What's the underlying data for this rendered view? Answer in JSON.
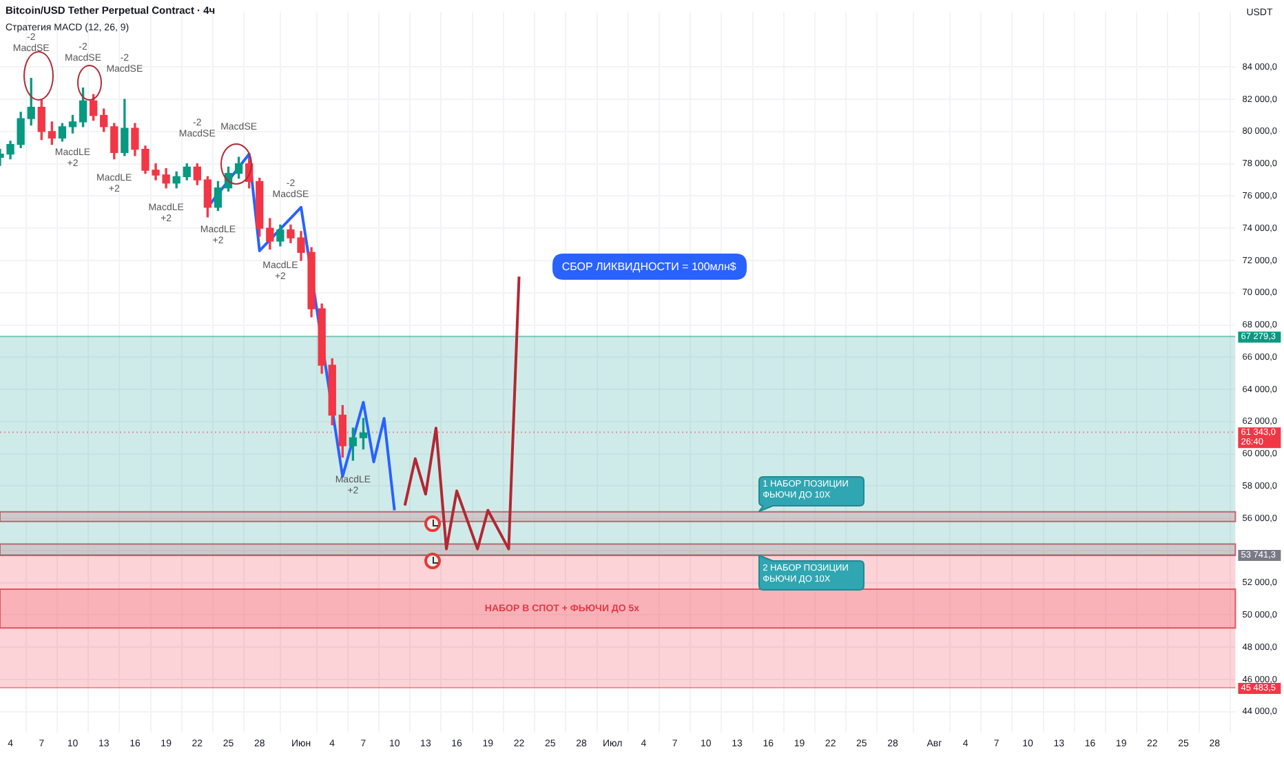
{
  "chart_data": {
    "type": "candlestick",
    "title": "Bitcoin/USD Tether Perpetual Contract · 4ч",
    "subtitle": "Стратегия MACD (12, 26, 9)",
    "ylabel": "USDT",
    "x": [
      "--05-03",
      "--05-04",
      "--05-05",
      "--05-06",
      "--05-07",
      "--05-08",
      "--05-09",
      "--05-10",
      "--05-11",
      "--05-12",
      "--05-13",
      "--05-14",
      "--05-15",
      "--05-16",
      "--05-17",
      "--05-18",
      "--05-19",
      "--05-20",
      "--05-21",
      "--05-22",
      "--05-23",
      "--05-24",
      "--05-25",
      "--05-26",
      "--05-27",
      "--05-28",
      "--05-29",
      "--05-30",
      "--05-31",
      "--06-01",
      "--06-02",
      "--06-03",
      "--06-04",
      "--06-05",
      "--06-06",
      "--06-07"
    ],
    "ohlc": [
      [
        78400,
        78900,
        77900,
        78600
      ],
      [
        78600,
        79400,
        78300,
        79200
      ],
      [
        79200,
        81200,
        79000,
        80800
      ],
      [
        80800,
        83300,
        80400,
        81500
      ],
      [
        81500,
        82000,
        79500,
        80000
      ],
      [
        80000,
        80600,
        79200,
        79600
      ],
      [
        79600,
        80500,
        79400,
        80300
      ],
      [
        80300,
        81000,
        79900,
        80600
      ],
      [
        80600,
        82700,
        80300,
        81900
      ],
      [
        81900,
        82300,
        80700,
        81000
      ],
      [
        81000,
        81400,
        80000,
        80300
      ],
      [
        80300,
        80500,
        78300,
        78700
      ],
      [
        78700,
        82000,
        78500,
        80200
      ],
      [
        80200,
        80500,
        78500,
        78900
      ],
      [
        78900,
        79100,
        77400,
        77600
      ],
      [
        77600,
        78000,
        77000,
        77300
      ],
      [
        77300,
        77700,
        76500,
        76800
      ],
      [
        76800,
        77500,
        76500,
        77200
      ],
      [
        77200,
        78000,
        77000,
        77800
      ],
      [
        77800,
        78000,
        76700,
        77000
      ],
      [
        77000,
        77200,
        74700,
        75300
      ],
      [
        75300,
        76900,
        75100,
        76500
      ],
      [
        76500,
        77800,
        76300,
        77400
      ],
      [
        77400,
        78400,
        77100,
        78000
      ],
      [
        78000,
        78300,
        76500,
        76900
      ],
      [
        76900,
        77100,
        73500,
        74000
      ],
      [
        74000,
        74600,
        72700,
        73200
      ],
      [
        73200,
        74200,
        72900,
        73900
      ],
      [
        73900,
        74200,
        73100,
        73400
      ],
      [
        73400,
        73800,
        72000,
        72500
      ],
      [
        72500,
        72800,
        68500,
        69000
      ],
      [
        69000,
        69300,
        65000,
        65500
      ],
      [
        65500,
        65900,
        61800,
        62400
      ],
      [
        62400,
        63000,
        59800,
        60500
      ],
      [
        60500,
        61600,
        59600,
        61000
      ],
      [
        61000,
        62200,
        60300,
        61300
      ]
    ],
    "colors": [
      "#089981",
      "#089981",
      "#089981",
      "#089981",
      "#f23645",
      "#f23645",
      "#089981",
      "#089981",
      "#089981",
      "#f23645",
      "#f23645",
      "#f23645",
      "#089981",
      "#f23645",
      "#f23645",
      "#f23645",
      "#f23645",
      "#089981",
      "#089981",
      "#f23645",
      "#f23645",
      "#089981",
      "#089981",
      "#089981",
      "#f23645",
      "#f23645",
      "#f23645",
      "#089981",
      "#f23645",
      "#f23645",
      "#f23645",
      "#f23645",
      "#f23645",
      "#f23645",
      "#089981",
      "#089981"
    ],
    "series": [
      {
        "type": "line",
        "color": "#2962ff",
        "x": [
          "--05-23",
          "--05-27",
          "--05-28",
          "--06-01",
          "--06-05",
          "--06-07",
          "--06-08",
          "--06-09",
          "--06-10"
        ],
        "values": [
          75300,
          78600,
          72600,
          75300,
          58600,
          63200,
          59500,
          62200,
          56500
        ]
      },
      {
        "type": "line",
        "color": "#b22833",
        "x": [
          "--06-11",
          "--06-12",
          "--06-13",
          "--06-14",
          "--06-15",
          "--06-16",
          "--06-18",
          "--06-19",
          "--06-21",
          "--06-22"
        ],
        "values": [
          56800,
          59700,
          57500,
          61600,
          54100,
          57700,
          54100,
          56500,
          54100,
          71000
        ]
      }
    ],
    "xlim": [
      "--05-03",
      "--08-30"
    ],
    "xticks": [
      {
        "value": "--05-04",
        "label": "4"
      },
      {
        "value": "--05-07",
        "label": "7"
      },
      {
        "value": "--05-10",
        "label": "10"
      },
      {
        "value": "--05-13",
        "label": "13"
      },
      {
        "value": "--05-16",
        "label": "16"
      },
      {
        "value": "--05-19",
        "label": "19"
      },
      {
        "value": "--05-22",
        "label": "22"
      },
      {
        "value": "--05-25",
        "label": "25"
      },
      {
        "value": "--05-28",
        "label": "28"
      },
      {
        "value": "--06-01",
        "label": "Июн"
      },
      {
        "value": "--06-04",
        "label": "4"
      },
      {
        "value": "--06-07",
        "label": "7"
      },
      {
        "value": "--06-10",
        "label": "10"
      },
      {
        "value": "--06-13",
        "label": "13"
      },
      {
        "value": "--06-16",
        "label": "16"
      },
      {
        "value": "--06-19",
        "label": "19"
      },
      {
        "value": "--06-22",
        "label": "22"
      },
      {
        "value": "--06-25",
        "label": "25"
      },
      {
        "value": "--06-28",
        "label": "28"
      },
      {
        "value": "--07-01",
        "label": "Июл"
      },
      {
        "value": "--07-04",
        "label": "4"
      },
      {
        "value": "--07-07",
        "label": "7"
      },
      {
        "value": "--07-10",
        "label": "10"
      },
      {
        "value": "--07-13",
        "label": "13"
      },
      {
        "value": "--07-16",
        "label": "16"
      },
      {
        "value": "--07-19",
        "label": "19"
      },
      {
        "value": "--07-22",
        "label": "22"
      },
      {
        "value": "--07-25",
        "label": "25"
      },
      {
        "value": "--07-28",
        "label": "28"
      },
      {
        "value": "--08-01",
        "label": "Авг"
      },
      {
        "value": "--08-04",
        "label": "4"
      },
      {
        "value": "--08-07",
        "label": "7"
      },
      {
        "value": "--08-10",
        "label": "10"
      },
      {
        "value": "--08-13",
        "label": "13"
      },
      {
        "value": "--08-16",
        "label": "16"
      },
      {
        "value": "--08-19",
        "label": "19"
      },
      {
        "value": "--08-22",
        "label": "22"
      },
      {
        "value": "--08-25",
        "label": "25"
      },
      {
        "value": "--08-28",
        "label": "28"
      }
    ],
    "ylim": [
      42700,
      87400
    ],
    "yticks": [
      {
        "value": 44000,
        "label": "44 000,0"
      },
      {
        "value": 46000,
        "label": "46 000,0"
      },
      {
        "value": 48000,
        "label": "48 000,0"
      },
      {
        "value": 50000,
        "label": "50 000,0"
      },
      {
        "value": 52000,
        "label": "52 000,0"
      },
      {
        "value": 54000,
        "label": null
      },
      {
        "value": 56000,
        "label": "56 000,0"
      },
      {
        "value": 58000,
        "label": "58 000,0"
      },
      {
        "value": 60000,
        "label": "60 000,0"
      },
      {
        "value": 62000,
        "label": "62 000,0"
      },
      {
        "value": 64000,
        "label": "64 000,0"
      },
      {
        "value": 66000,
        "label": "66 000,0"
      },
      {
        "value": 68000,
        "label": "68 000,0"
      },
      {
        "value": 70000,
        "label": "70 000,0"
      },
      {
        "value": 72000,
        "label": "72 000,0"
      },
      {
        "value": 74000,
        "label": "74 000,0"
      },
      {
        "value": 76000,
        "label": "76 000,0"
      },
      {
        "value": 78000,
        "label": "78 000,0"
      },
      {
        "value": 80000,
        "label": "80 000,0"
      },
      {
        "value": 82000,
        "label": "82 000,0"
      },
      {
        "value": 84000,
        "label": "84 000,0"
      }
    ],
    "grid": true,
    "bands": [
      {
        "axis": "y",
        "from": 55800,
        "to": 56400,
        "label": "1 НАБОР ПОЗИЦИИ ФЬЮЧИ ДО 10X",
        "color": "#f7a1aa"
      },
      {
        "axis": "y",
        "from": 53700,
        "to": 54400,
        "label": "2 НАБОР ПОЗИЦИИ ФЬЮЧИ ДО 10X",
        "color": "#f7a1aa"
      },
      {
        "axis": "y",
        "from": 49200,
        "to": 51600,
        "label": "НАБОР В СПОТ + ФЬЮЧИ ДО 5x",
        "color": "#f7a1aa"
      },
      {
        "axis": "y",
        "from": 53741.3,
        "to": 67279.3,
        "color": "#26a69a"
      },
      {
        "axis": "y",
        "from": 45483.5,
        "to": 53741.3,
        "color": "#f23645"
      }
    ],
    "ref_lines": [
      {
        "axis": "y",
        "value": 67279.3,
        "label": "67 279,3",
        "color": "#089981"
      },
      {
        "axis": "y",
        "value": 61343,
        "label": "61 343,0 26:40",
        "color": "#f23645",
        "line_style": "dotted"
      },
      {
        "axis": "y",
        "value": 53741.3,
        "label": "53 741,3",
        "color": "#787b86"
      },
      {
        "axis": "y",
        "value": 45483.5,
        "label": "45 483,5",
        "color": "#f23645"
      }
    ],
    "annotations": [
      "СБОР ЛИКВИДНОСТИ = 100млн$",
      {
        "text": "-2\nMacdSE",
        "x": "--05-06",
        "y": 83300
      },
      {
        "text": "MacdLE\n+2",
        "x": "--05-10",
        "y": 79900
      },
      {
        "text": "-2\nMacdSE",
        "x": "--05-11",
        "y": 82700
      },
      {
        "text": "MacdLE\n+2",
        "x": "--05-14",
        "y": 78300
      },
      {
        "text": "-2\nMacdSE",
        "x": "--05-15",
        "y": 82000
      },
      {
        "text": "MacdLE\n+2",
        "x": "--05-19",
        "y": 76500
      },
      {
        "text": "-2\nMacdSE",
        "x": "--05-22",
        "y": 78000
      },
      {
        "text": "MacdLE\n+2",
        "x": "--05-24",
        "y": 75100
      },
      {
        "text": "MacdSE",
        "x": "--05-26",
        "y": 78400
      },
      {
        "text": "MacdLE\n+2",
        "x": "--05-30",
        "y": 72900
      },
      {
        "text": "-2\nMacdSE",
        "x": "--05-31",
        "y": 74200
      },
      {
        "text": "MacdLE\n+2",
        "x": "--06-06",
        "y": 59600
      }
    ]
  }
}
